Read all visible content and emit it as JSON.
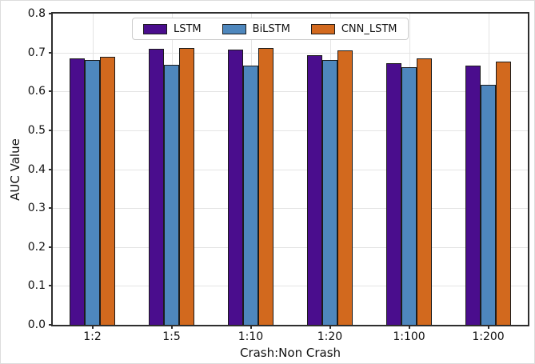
{
  "chart_data": {
    "type": "bar",
    "xlabel": "Crash:Non Crash",
    "ylabel": "AUC Value",
    "categories": [
      "1:2",
      "1:5",
      "1:10",
      "1:20",
      "1:100",
      "1:200"
    ],
    "series": [
      {
        "name": "LSTM",
        "color": "#4a0d8d",
        "values": [
          0.685,
          0.71,
          0.708,
          0.693,
          0.672,
          0.666
        ]
      },
      {
        "name": "BiLSTM",
        "color": "#4e87bd",
        "values": [
          0.68,
          0.668,
          0.667,
          0.68,
          0.662,
          0.616
        ]
      },
      {
        "name": "CNN_LSTM",
        "color": "#d2691e",
        "values": [
          0.69,
          0.711,
          0.711,
          0.706,
          0.684,
          0.677
        ]
      }
    ],
    "ylim": [
      0,
      0.8
    ],
    "yticks": [
      0.0,
      0.1,
      0.2,
      0.3,
      0.4,
      0.5,
      0.6,
      0.7,
      0.8
    ],
    "grid": true,
    "legend_position": "upper center"
  },
  "styles": {
    "bar_edge_color": "#1c1c1c",
    "grid_color": "#e4e4e4",
    "spine_color": "#2e2e2e"
  }
}
